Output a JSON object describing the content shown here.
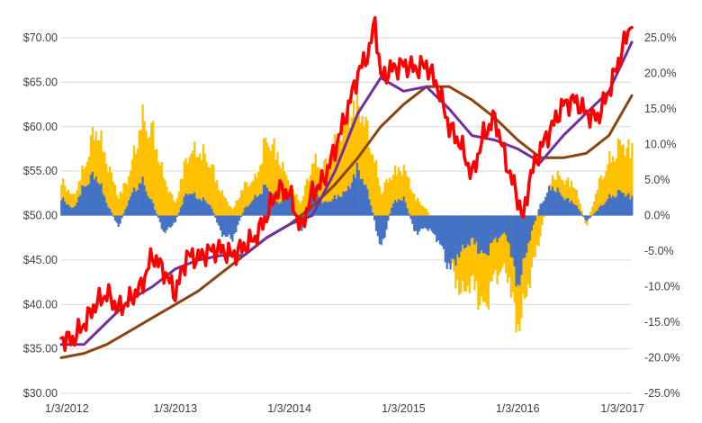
{
  "chart_data": {
    "type": "line",
    "title": "",
    "xlabel": "",
    "ylabel": "",
    "x_ticks": [
      "1/3/2012",
      "1/3/2013",
      "1/3/2014",
      "1/3/2015",
      "1/3/2016",
      "1/3/2017"
    ],
    "x_range": [
      "1/3/2012",
      "1/3/2017"
    ],
    "y_left": {
      "ticks": [
        "$30.00",
        "$35.00",
        "$40.00",
        "$45.00",
        "$50.00",
        "$55.00",
        "$60.00",
        "$65.00",
        "$70.00"
      ],
      "range": [
        30,
        72
      ]
    },
    "y_right": {
      "ticks": [
        "-25.0%",
        "-20.0%",
        "-15.0%",
        "-10.0%",
        "-5.0%",
        "0.0%",
        "5.0%",
        "10.0%",
        "15.0%",
        "20.0%",
        "25.0%"
      ],
      "range": [
        -25,
        25
      ]
    },
    "grid": true,
    "legend": "none",
    "colors": {
      "price": "#ff0000",
      "fast_ma": "#7030a0",
      "slow_ma": "#8b4513",
      "momentum_yellow": "#ffc000",
      "momentum_blue": "#4472c4"
    },
    "series": [
      {
        "axis": "left",
        "kind": "line",
        "color": "#ff0000",
        "x": [
          2012.0,
          2012.1,
          2012.2,
          2012.3,
          2012.4,
          2012.5,
          2012.6,
          2012.7,
          2012.8,
          2012.9,
          2013.0,
          2013.1,
          2013.2,
          2013.3,
          2013.4,
          2013.5,
          2013.6,
          2013.7,
          2013.8,
          2013.9,
          2014.0,
          2014.1,
          2014.2,
          2014.3,
          2014.4,
          2014.5,
          2014.6,
          2014.7,
          2014.75,
          2014.8,
          2014.9,
          2015.0,
          2015.1,
          2015.2,
          2015.3,
          2015.4,
          2015.5,
          2015.6,
          2015.7,
          2015.8,
          2015.9,
          2016.0,
          2016.05,
          2016.1,
          2016.2,
          2016.3,
          2016.4,
          2016.5,
          2016.6,
          2016.7,
          2016.8,
          2016.9,
          2017.0
        ],
        "values": [
          36.2,
          36.0,
          37.8,
          40.0,
          41.2,
          39.5,
          40.5,
          42.0,
          45.5,
          43.8,
          41.2,
          45.5,
          45.2,
          46.0,
          46.2,
          45.5,
          46.5,
          47.5,
          50.0,
          53.0,
          52.5,
          48.5,
          52.5,
          54.0,
          57.5,
          61.5,
          66.0,
          68.5,
          72.0,
          65.5,
          66.5,
          67.0,
          66.5,
          67.0,
          64.5,
          60.0,
          58.0,
          54.5,
          59.0,
          61.0,
          56.0,
          52.0,
          49.5,
          54.0,
          57.5,
          60.0,
          62.5,
          63.0,
          61.5,
          61.0,
          64.0,
          68.0,
          72.0
        ]
      },
      {
        "axis": "left",
        "kind": "line",
        "color": "#7030a0",
        "x": [
          2012.0,
          2012.2,
          2012.4,
          2012.6,
          2012.8,
          2013.0,
          2013.2,
          2013.4,
          2013.6,
          2013.8,
          2014.0,
          2014.2,
          2014.4,
          2014.6,
          2014.8,
          2015.0,
          2015.2,
          2015.4,
          2015.6,
          2015.8,
          2016.0,
          2016.2,
          2016.4,
          2016.6,
          2016.8,
          2017.0
        ],
        "values": [
          35.5,
          35.5,
          38.0,
          40.5,
          42.0,
          44.0,
          45.0,
          45.5,
          45.5,
          47.5,
          49.0,
          50.0,
          55.0,
          61.5,
          65.5,
          64.0,
          64.5,
          62.0,
          59.0,
          58.5,
          57.5,
          56.0,
          59.0,
          61.5,
          64.0,
          69.5
        ]
      },
      {
        "axis": "left",
        "kind": "line",
        "color": "#8b4513",
        "x": [
          2012.0,
          2012.2,
          2012.4,
          2012.6,
          2012.8,
          2013.0,
          2013.2,
          2013.4,
          2013.6,
          2013.8,
          2014.0,
          2014.2,
          2014.4,
          2014.6,
          2014.8,
          2015.0,
          2015.2,
          2015.4,
          2015.6,
          2015.8,
          2016.0,
          2016.2,
          2016.4,
          2016.6,
          2016.8,
          2017.0
        ],
        "values": [
          34.0,
          34.5,
          35.5,
          37.0,
          38.5,
          40.0,
          41.5,
          43.5,
          45.5,
          47.5,
          49.0,
          51.0,
          53.5,
          56.5,
          60.0,
          62.5,
          64.5,
          64.5,
          63.0,
          61.0,
          58.5,
          56.5,
          56.5,
          57.0,
          59.0,
          63.5
        ]
      },
      {
        "axis": "right",
        "kind": "bars",
        "color": "#ffc000",
        "x": [
          2012.0,
          2012.1,
          2012.2,
          2012.3,
          2012.4,
          2012.5,
          2012.6,
          2012.7,
          2012.8,
          2012.9,
          2013.0,
          2013.1,
          2013.2,
          2013.3,
          2013.4,
          2013.5,
          2013.6,
          2013.7,
          2013.8,
          2013.9,
          2014.0,
          2014.1,
          2014.2,
          2014.3,
          2014.4,
          2014.5,
          2014.6,
          2014.7,
          2014.8,
          2014.9,
          2015.0,
          2015.1,
          2015.2,
          2015.3,
          2015.4,
          2015.5,
          2015.6,
          2015.7,
          2015.8,
          2015.9,
          2016.0,
          2016.1,
          2016.2,
          2016.3,
          2016.4,
          2016.5,
          2016.6,
          2016.7,
          2016.8,
          2016.9,
          2017.0
        ],
        "values": [
          6.0,
          3.0,
          8.0,
          15.0,
          9.0,
          3.0,
          7.0,
          16.0,
          14.0,
          6.0,
          2.0,
          10.0,
          11.0,
          9.0,
          4.0,
          1.0,
          5.0,
          6.0,
          13.0,
          10.0,
          5.0,
          2.0,
          9.0,
          8.0,
          12.0,
          16.0,
          19.0,
          13.0,
          4.0,
          7.0,
          8.0,
          3.0,
          1.0,
          -3.0,
          -8.0,
          -13.0,
          -11.0,
          -16.0,
          -10.0,
          -9.0,
          -19.0,
          -11.0,
          -3.0,
          7.0,
          6.0,
          5.0,
          -2.0,
          5.0,
          9.0,
          12.0,
          11.0
        ]
      },
      {
        "axis": "right",
        "kind": "bars",
        "color": "#4472c4",
        "x": [
          2012.0,
          2012.1,
          2012.2,
          2012.3,
          2012.4,
          2012.5,
          2012.6,
          2012.7,
          2012.8,
          2012.9,
          2013.0,
          2013.1,
          2013.2,
          2013.3,
          2013.4,
          2013.5,
          2013.6,
          2013.7,
          2013.8,
          2013.9,
          2014.0,
          2014.1,
          2014.2,
          2014.3,
          2014.4,
          2014.5,
          2014.6,
          2014.7,
          2014.8,
          2014.9,
          2015.0,
          2015.1,
          2015.2,
          2015.3,
          2015.4,
          2015.5,
          2015.6,
          2015.7,
          2015.8,
          2015.9,
          2016.0,
          2016.1,
          2016.2,
          2016.3,
          2016.4,
          2016.5,
          2016.6,
          2016.7,
          2016.8,
          2016.9,
          2017.0
        ],
        "values": [
          3.0,
          1.0,
          5.0,
          7.0,
          2.0,
          -2.0,
          3.0,
          6.0,
          2.0,
          -3.0,
          -1.0,
          4.0,
          3.0,
          2.0,
          -3.0,
          -4.0,
          1.0,
          3.0,
          5.0,
          2.0,
          4.0,
          -3.0,
          5.0,
          2.0,
          3.0,
          4.0,
          8.0,
          3.0,
          -6.0,
          2.0,
          3.0,
          -3.0,
          -2.0,
          -4.0,
          -9.0,
          -6.0,
          -4.0,
          -7.0,
          -4.0,
          -3.0,
          -12.0,
          -4.0,
          2.0,
          5.0,
          3.0,
          2.0,
          -1.0,
          1.0,
          3.0,
          4.0,
          3.0
        ]
      }
    ]
  }
}
